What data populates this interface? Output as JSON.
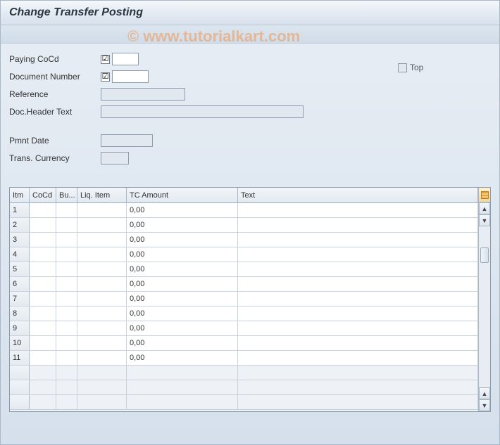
{
  "title": "Change Transfer Posting",
  "watermark": "© www.tutorialkart.com",
  "form": {
    "paying_cocd_label": "Paying CoCd",
    "paying_cocd_value": "",
    "paying_cocd_checked": "☑",
    "document_number_label": "Document Number",
    "document_number_value": "",
    "document_number_checked": "☑",
    "reference_label": "Reference",
    "reference_value": "",
    "doc_header_label": "Doc.Header Text",
    "doc_header_value": "",
    "pmnt_date_label": "Pmnt Date",
    "pmnt_date_value": "",
    "trans_currency_label": "Trans. Currency",
    "trans_currency_value": "",
    "top_label": "Top"
  },
  "table": {
    "columns": {
      "itm": "Itm",
      "cocd": "CoCd",
      "bu": "Bu...",
      "liq": "Liq. Item",
      "tca": "TC Amount",
      "text": "Text"
    },
    "rows": [
      {
        "itm": "1",
        "cocd": "",
        "bu": "",
        "liq": "",
        "tca": "0,00",
        "text": ""
      },
      {
        "itm": "2",
        "cocd": "",
        "bu": "",
        "liq": "",
        "tca": "0,00",
        "text": ""
      },
      {
        "itm": "3",
        "cocd": "",
        "bu": "",
        "liq": "",
        "tca": "0,00",
        "text": ""
      },
      {
        "itm": "4",
        "cocd": "",
        "bu": "",
        "liq": "",
        "tca": "0,00",
        "text": ""
      },
      {
        "itm": "5",
        "cocd": "",
        "bu": "",
        "liq": "",
        "tca": "0,00",
        "text": ""
      },
      {
        "itm": "6",
        "cocd": "",
        "bu": "",
        "liq": "",
        "tca": "0,00",
        "text": ""
      },
      {
        "itm": "7",
        "cocd": "",
        "bu": "",
        "liq": "",
        "tca": "0,00",
        "text": ""
      },
      {
        "itm": "8",
        "cocd": "",
        "bu": "",
        "liq": "",
        "tca": "0,00",
        "text": ""
      },
      {
        "itm": "9",
        "cocd": "",
        "bu": "",
        "liq": "",
        "tca": "0,00",
        "text": ""
      },
      {
        "itm": "10",
        "cocd": "",
        "bu": "",
        "liq": "",
        "tca": "0,00",
        "text": ""
      },
      {
        "itm": "11",
        "cocd": "",
        "bu": "",
        "liq": "",
        "tca": "0,00",
        "text": ""
      }
    ],
    "empty_rows": 3
  },
  "colors": {
    "bg_top": "#e8eef5",
    "bg_bottom": "#d5e0ec",
    "border": "#8a9bad",
    "readonly_bg": "#e2e8ef",
    "cell_bg": "#ffffff",
    "grid_bg": "#eef2f7"
  }
}
